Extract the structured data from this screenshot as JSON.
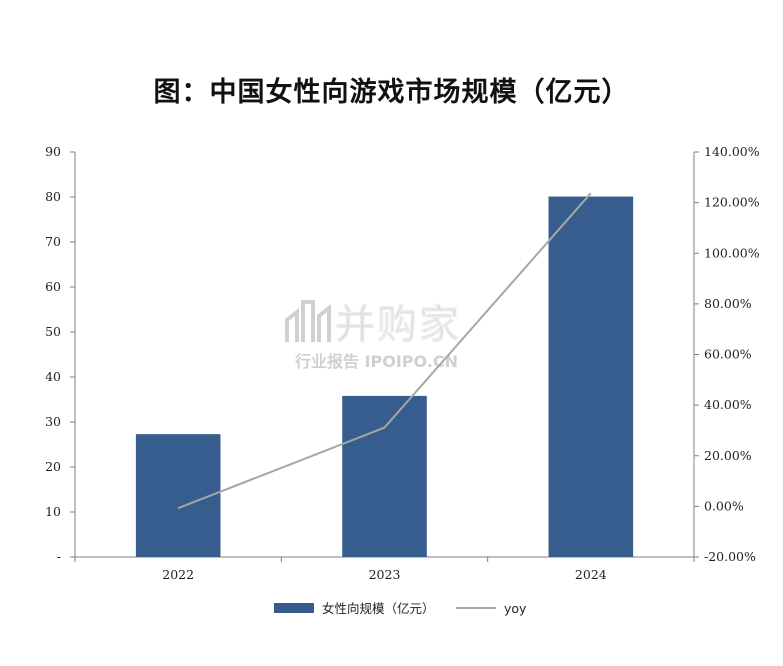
{
  "chart_data": {
    "type": "bar",
    "title": "图：中国女性向游戏市场规模（亿元）",
    "categories": [
      "2022",
      "2023",
      "2024"
    ],
    "series": [
      {
        "name": "女性向规模（亿元）",
        "type": "bar",
        "axis": "left",
        "values": [
          27.3,
          35.8,
          80.1
        ]
      },
      {
        "name": "yoy",
        "type": "line",
        "axis": "right",
        "values": [
          -0.007,
          0.3114,
          1.2374
        ]
      }
    ],
    "y_left": {
      "min": 0,
      "max": 90,
      "step": 10,
      "tick_labels": [
        "-",
        "10",
        "20",
        "30",
        "40",
        "50",
        "60",
        "70",
        "80",
        "90"
      ]
    },
    "y_right": {
      "min": -0.2,
      "max": 1.4,
      "step": 0.2,
      "tick_labels": [
        "-20.00%",
        "0.00%",
        "20.00%",
        "40.00%",
        "60.00%",
        "80.00%",
        "100.00%",
        "120.00%",
        "140.00%"
      ]
    },
    "grid": false,
    "legend_position": "bottom"
  },
  "colors": {
    "bar": "#375D8E",
    "line": "#A6A6A6",
    "axis": "#7F7F7F"
  },
  "watermark": {
    "brand": "并购家",
    "sub": "行业报告 IPOIPO.CN"
  }
}
